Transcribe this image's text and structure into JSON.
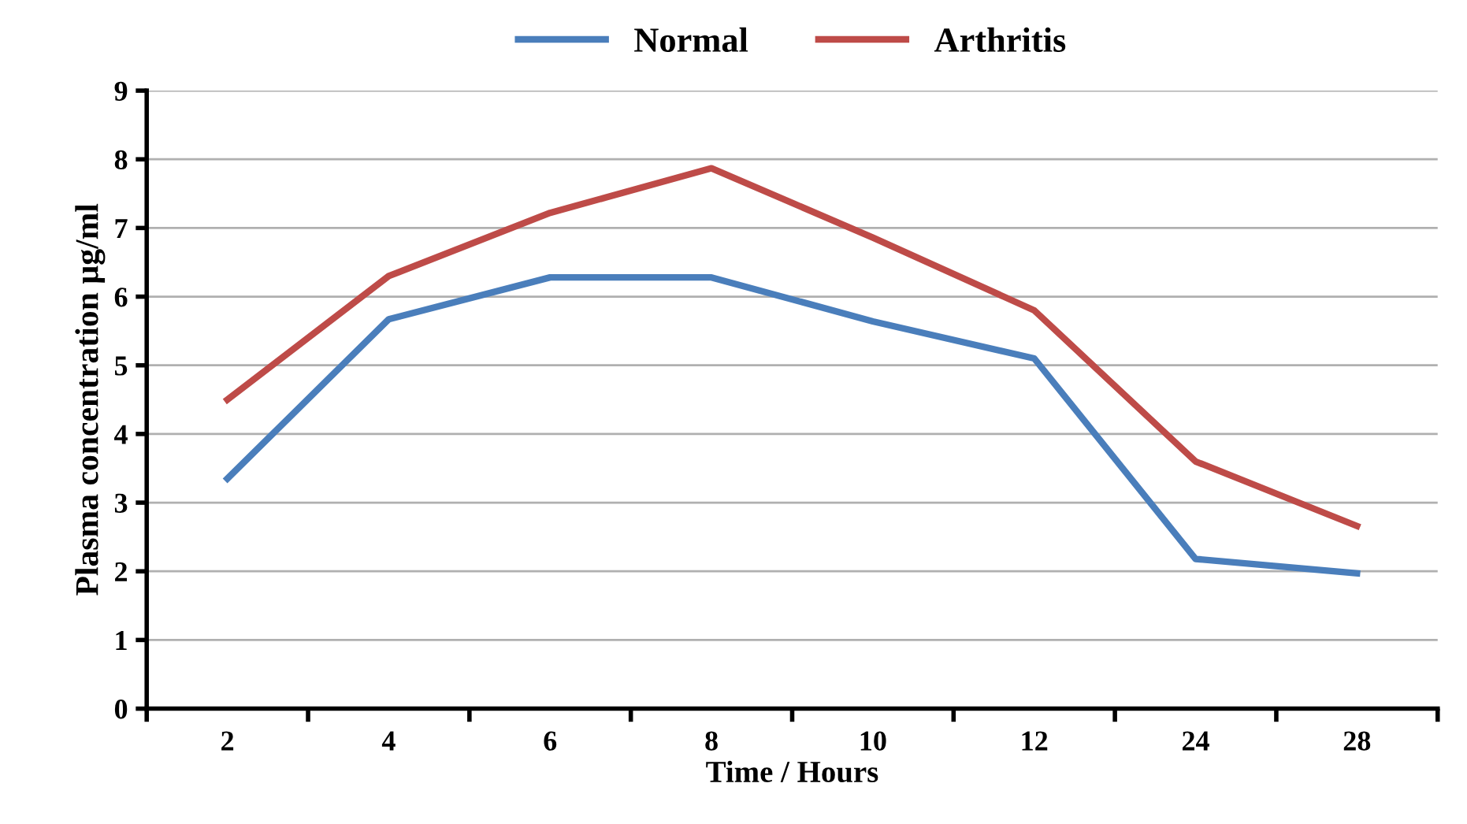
{
  "chart_data": {
    "type": "line",
    "xlabel": "Time / Hours",
    "ylabel": "Plasma concentration µg/ml",
    "categories": [
      "2",
      "4",
      "6",
      "8",
      "10",
      "12",
      "24",
      "28"
    ],
    "series": [
      {
        "name": "Normal",
        "color": "#4a7ebb",
        "values": [
          3.35,
          5.67,
          6.28,
          6.28,
          5.64,
          5.1,
          2.18,
          1.97
        ]
      },
      {
        "name": "Arthritis",
        "color": "#be4b48",
        "values": [
          4.5,
          6.3,
          7.22,
          7.87,
          6.86,
          5.8,
          3.6,
          2.66
        ]
      }
    ],
    "ylim": [
      0,
      9
    ],
    "yticks": [
      0,
      1,
      2,
      3,
      4,
      5,
      6,
      7,
      8,
      9
    ],
    "grid": "y",
    "legend": "top",
    "marker": "none",
    "line_style": "solid"
  }
}
